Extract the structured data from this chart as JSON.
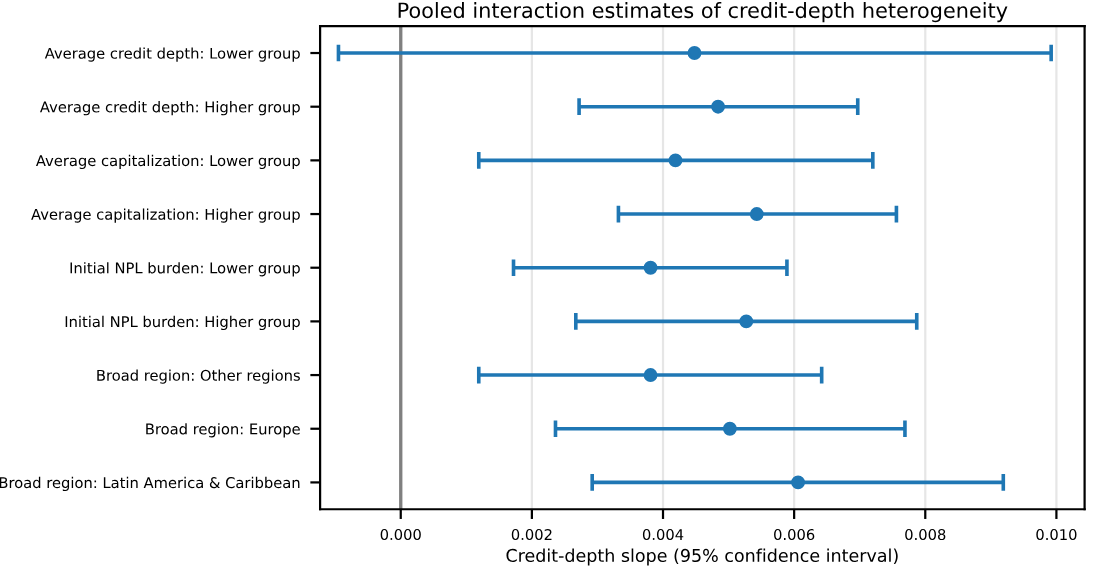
{
  "chart_data": {
    "type": "scatter",
    "orientation": "horizontal",
    "title": "Pooled interaction estimates of credit-depth heterogeneity",
    "xlabel": "Credit-depth slope (95% confidence interval)",
    "categories": [
      "Average credit depth: Lower group",
      "Average credit depth: Higher group",
      "Average capitalization: Lower group",
      "Average capitalization: Higher group",
      "Initial NPL burden: Lower group",
      "Initial NPL burden: Higher group",
      "Broad region: Other regions",
      "Broad region: Europe",
      "Broad region: Latin America & Caribbean"
    ],
    "series": [
      {
        "color": "#1f77b4",
        "values": [
          0.00448,
          0.00484,
          0.00419,
          0.00543,
          0.00381,
          0.00527,
          0.00381,
          0.00502,
          0.00606
        ],
        "errors": [
          [
            -0.00095,
            0.00992
          ],
          [
            0.00272,
            0.00697
          ],
          [
            0.00119,
            0.0072
          ],
          [
            0.00332,
            0.00756
          ],
          [
            0.00172,
            0.00589
          ],
          [
            0.00267,
            0.00787
          ],
          [
            0.00119,
            0.00642
          ],
          [
            0.00236,
            0.00769
          ],
          [
            0.00292,
            0.00919
          ]
        ]
      }
    ],
    "marker": "circle",
    "xlim": [
      -0.00123,
      0.01043
    ],
    "xticks": [
      {
        "value": 0,
        "label": "0.000"
      },
      {
        "value": 0.002,
        "label": "0.002"
      },
      {
        "value": 0.004,
        "label": "0.004"
      },
      {
        "value": 0.006,
        "label": "0.006"
      },
      {
        "value": 0.008,
        "label": "0.008"
      },
      {
        "value": 0.01,
        "label": "0.010"
      }
    ],
    "grid": "x",
    "ref_lines": [
      {
        "axis": "x",
        "value": 0,
        "color": "#808080"
      }
    ]
  }
}
